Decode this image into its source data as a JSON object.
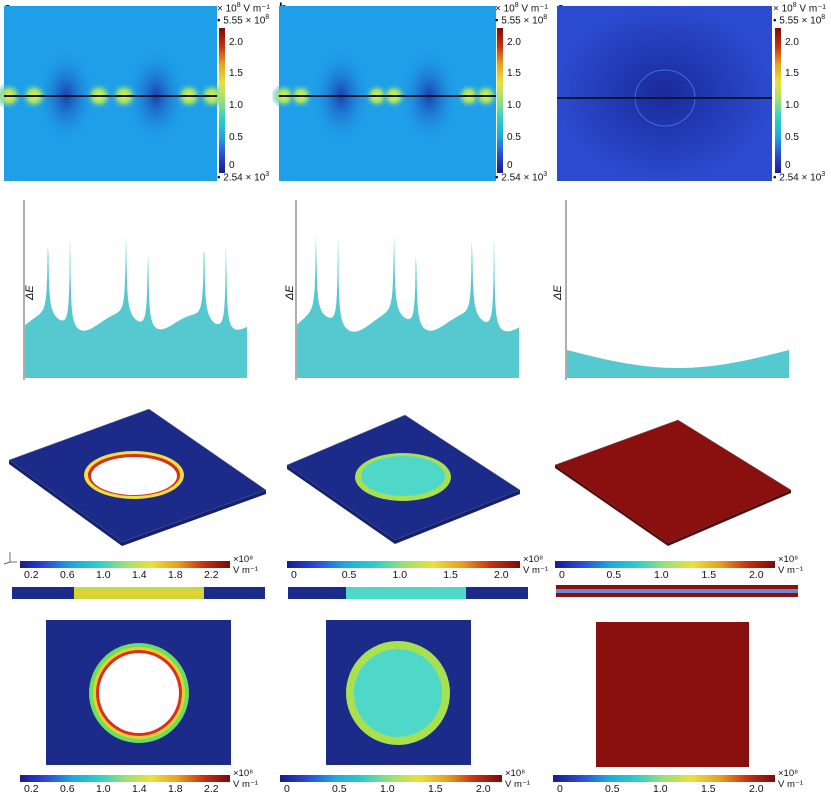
{
  "panels": [
    {
      "label": "a"
    },
    {
      "label": "b"
    },
    {
      "label": "c"
    }
  ],
  "top_colorbar": {
    "max_label": "5.55 × 10",
    "max_exp": "8",
    "unit_label": "× 10",
    "unit_exp": "8",
    "unit_suffix": " V m⁻¹",
    "min_label": "2.54 × 10",
    "min_exp": "3",
    "ticks": [
      "2.0",
      "1.5",
      "1.0",
      "0.5",
      "0"
    ]
  },
  "profile_ylabel": "ΔE",
  "axis_triad_a": "y z x",
  "colorbars_bottom": [
    {
      "ticks": [
        "0.2",
        "0.6",
        "1.0",
        "1.4",
        "1.8",
        "2.2"
      ],
      "exp": "×10⁸",
      "unit": "V m⁻¹",
      "unit_prefix": "2.2 "
    },
    {
      "ticks": [
        "0",
        "0.5",
        "1.0",
        "1.5",
        "2.0"
      ],
      "exp": "×10⁸",
      "unit": "V m⁻¹"
    },
    {
      "ticks": [
        "0",
        "0.5",
        "1.0",
        "1.5",
        "2.0"
      ],
      "exp": "×10⁸",
      "unit": "V m⁻¹"
    }
  ],
  "colors": {
    "background_field": "#1f9fe8",
    "deep_blue": "#1c2a8a",
    "dark_red": "#8a1010",
    "cyan_profile": "#55c8d0",
    "disc_cyan": "#4fd8c8"
  }
}
